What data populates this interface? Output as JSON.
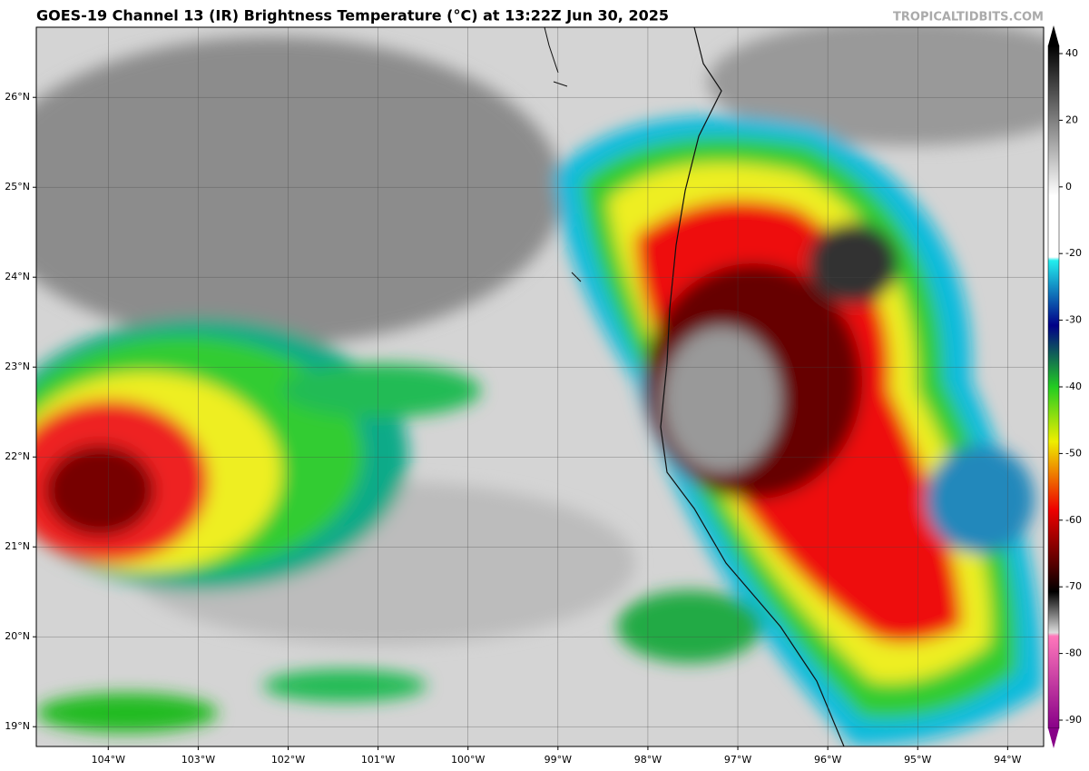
{
  "header": {
    "title": "GOES-19 Channel 13 (IR) Brightness Temperature (°C) at 13:22Z Jun 30, 2025",
    "source": "TROPICALTIDBITS.COM"
  },
  "map": {
    "lonlim": [
      -104.8,
      -93.6
    ],
    "latlim": [
      18.78,
      26.78
    ],
    "lon_ticks": [
      {
        "value": -104,
        "label": "104°W"
      },
      {
        "value": -103,
        "label": "103°W"
      },
      {
        "value": -102,
        "label": "102°W"
      },
      {
        "value": -101,
        "label": "101°W"
      },
      {
        "value": -100,
        "label": "100°W"
      },
      {
        "value": -99,
        "label": "99°W"
      },
      {
        "value": -98,
        "label": "98°W"
      },
      {
        "value": -97,
        "label": "97°W"
      },
      {
        "value": -96,
        "label": "96°W"
      },
      {
        "value": -95,
        "label": "95°W"
      },
      {
        "value": -94,
        "label": "94°W"
      }
    ],
    "lat_ticks": [
      {
        "value": 19,
        "label": "19°N"
      },
      {
        "value": 20,
        "label": "20°N"
      },
      {
        "value": 21,
        "label": "21°N"
      },
      {
        "value": 22,
        "label": "22°N"
      },
      {
        "value": 23,
        "label": "23°N"
      },
      {
        "value": 24,
        "label": "24°N"
      },
      {
        "value": 25,
        "label": "25°N"
      },
      {
        "value": 26,
        "label": "26°N"
      }
    ]
  },
  "colorbar": {
    "ticks": [
      40,
      20,
      0,
      -20,
      -30,
      -40,
      -50,
      -60,
      -70,
      -80,
      -90
    ]
  }
}
